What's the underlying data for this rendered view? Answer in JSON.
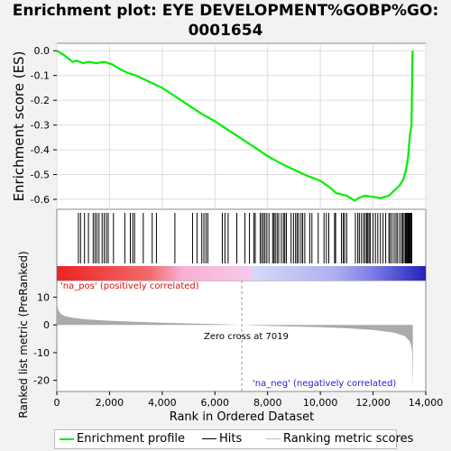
{
  "title_line1": "Enrichment plot: EYE DEVELOPMENT%GOBP%GO:",
  "title_line2": "0001654",
  "colors": {
    "es_curve": "#00ee00",
    "hits": "#000000",
    "metric_fill": "#aaaaaa",
    "pos_label": "#d81111",
    "neg_label": "#2222cc",
    "zero_cross_line": "#999999"
  },
  "chart_data": [
    {
      "type": "line",
      "name": "enrichment-score",
      "ylabel": "Enrichment score (ES)",
      "ylim": [
        -0.64,
        0.03
      ],
      "yticks": [
        "0.0",
        "-0.1",
        "-0.2",
        "-0.3",
        "-0.4",
        "-0.5",
        "-0.6"
      ],
      "ytick_values": [
        0.0,
        -0.1,
        -0.2,
        -0.3,
        -0.4,
        -0.5,
        -0.6
      ],
      "xlim": [
        0,
        14000
      ],
      "points": [
        [
          0,
          0.0
        ],
        [
          300,
          -0.02
        ],
        [
          600,
          -0.045
        ],
        [
          750,
          -0.04
        ],
        [
          1000,
          -0.05
        ],
        [
          1200,
          -0.045
        ],
        [
          1500,
          -0.05
        ],
        [
          1800,
          -0.045
        ],
        [
          2100,
          -0.055
        ],
        [
          2400,
          -0.075
        ],
        [
          2700,
          -0.09
        ],
        [
          3000,
          -0.1
        ],
        [
          3300,
          -0.115
        ],
        [
          3600,
          -0.13
        ],
        [
          4000,
          -0.15
        ],
        [
          4500,
          -0.185
        ],
        [
          5000,
          -0.22
        ],
        [
          5500,
          -0.255
        ],
        [
          6000,
          -0.285
        ],
        [
          6500,
          -0.32
        ],
        [
          7000,
          -0.355
        ],
        [
          7500,
          -0.39
        ],
        [
          8000,
          -0.425
        ],
        [
          8500,
          -0.455
        ],
        [
          9000,
          -0.48
        ],
        [
          9500,
          -0.505
        ],
        [
          10000,
          -0.525
        ],
        [
          10400,
          -0.555
        ],
        [
          10600,
          -0.575
        ],
        [
          11000,
          -0.585
        ],
        [
          11300,
          -0.605
        ],
        [
          11450,
          -0.595
        ],
        [
          11700,
          -0.585
        ],
        [
          12000,
          -0.59
        ],
        [
          12300,
          -0.595
        ],
        [
          12600,
          -0.585
        ],
        [
          12800,
          -0.565
        ],
        [
          13000,
          -0.545
        ],
        [
          13150,
          -0.52
        ],
        [
          13250,
          -0.48
        ],
        [
          13330,
          -0.43
        ],
        [
          13400,
          -0.34
        ],
        [
          13460,
          -0.3
        ],
        [
          13500,
          0.0
        ]
      ]
    },
    {
      "type": "scatter",
      "name": "hits",
      "legend": "Hits",
      "xlim": [
        0,
        14000
      ],
      "x": [
        820,
        900,
        1050,
        1200,
        1380,
        1450,
        1520,
        1600,
        1720,
        1800,
        1880,
        1950,
        2150,
        2580,
        2790,
        2880,
        2950,
        3280,
        3620,
        3780,
        4480,
        5150,
        5320,
        5500,
        5580,
        5660,
        5730,
        6280,
        6380,
        6500,
        6830,
        7140,
        7310,
        7480,
        7530,
        7720,
        7780,
        7840,
        7900,
        7970,
        8050,
        8190,
        8240,
        8290,
        8360,
        8420,
        8520,
        8600,
        8650,
        8710,
        8890,
        8980,
        9060,
        9120,
        9180,
        9270,
        9330,
        9410,
        9600,
        9680,
        9920,
        10140,
        10230,
        10320,
        10540,
        10580,
        10800,
        10870,
        10920,
        11000,
        11330,
        11420,
        11480,
        11560,
        11640,
        11700,
        11760,
        11800,
        11850,
        11900,
        12000,
        12090,
        12180,
        12280,
        12380,
        12480,
        12600,
        12650,
        12720,
        12800,
        12870,
        12930,
        13010,
        13080,
        13130,
        13180,
        13230,
        13260,
        13290,
        13320,
        13350,
        13380,
        13410,
        13440,
        13470
      ]
    },
    {
      "type": "area",
      "name": "ranked-metric",
      "legend": "Ranking metric scores",
      "xlabel": "Rank in Ordered Dataset",
      "ylabel": "Ranked list metric (PreRanked)",
      "ylim": [
        -24,
        16
      ],
      "yticks": [
        "10",
        "0",
        "-10",
        "-20"
      ],
      "ytick_values": [
        10,
        0,
        -10,
        -20
      ],
      "xlim": [
        0,
        14000
      ],
      "xticks": [
        "0",
        "2,000",
        "4,000",
        "6,000",
        "8,000",
        "10,000",
        "12,000",
        "14,000"
      ],
      "xtick_values": [
        0,
        2000,
        4000,
        6000,
        8000,
        10000,
        12000,
        14000
      ],
      "points": [
        [
          0,
          8.0
        ],
        [
          50,
          5.5
        ],
        [
          150,
          4.0
        ],
        [
          300,
          3.2
        ],
        [
          600,
          2.6
        ],
        [
          1000,
          2.1
        ],
        [
          2000,
          1.5
        ],
        [
          3000,
          1.1
        ],
        [
          4000,
          0.8
        ],
        [
          5000,
          0.55
        ],
        [
          6000,
          0.3
        ],
        [
          7019,
          0.0
        ],
        [
          8000,
          -0.35
        ],
        [
          9000,
          -0.6
        ],
        [
          10000,
          -0.85
        ],
        [
          11000,
          -1.2
        ],
        [
          12000,
          -1.8
        ],
        [
          12800,
          -2.8
        ],
        [
          13200,
          -4.0
        ],
        [
          13400,
          -6.0
        ],
        [
          13480,
          -9.0
        ],
        [
          13510,
          -23.0
        ]
      ],
      "zero_cross": 7019,
      "zero_cross_label": "Zero cross at 7019",
      "pos_label": "'na_pos' (positively correlated)",
      "neg_label": "'na_neg' (negatively correlated)"
    }
  ],
  "legend": {
    "es": "Enrichment profile",
    "hits": "Hits",
    "metric": "Ranking metric scores"
  }
}
